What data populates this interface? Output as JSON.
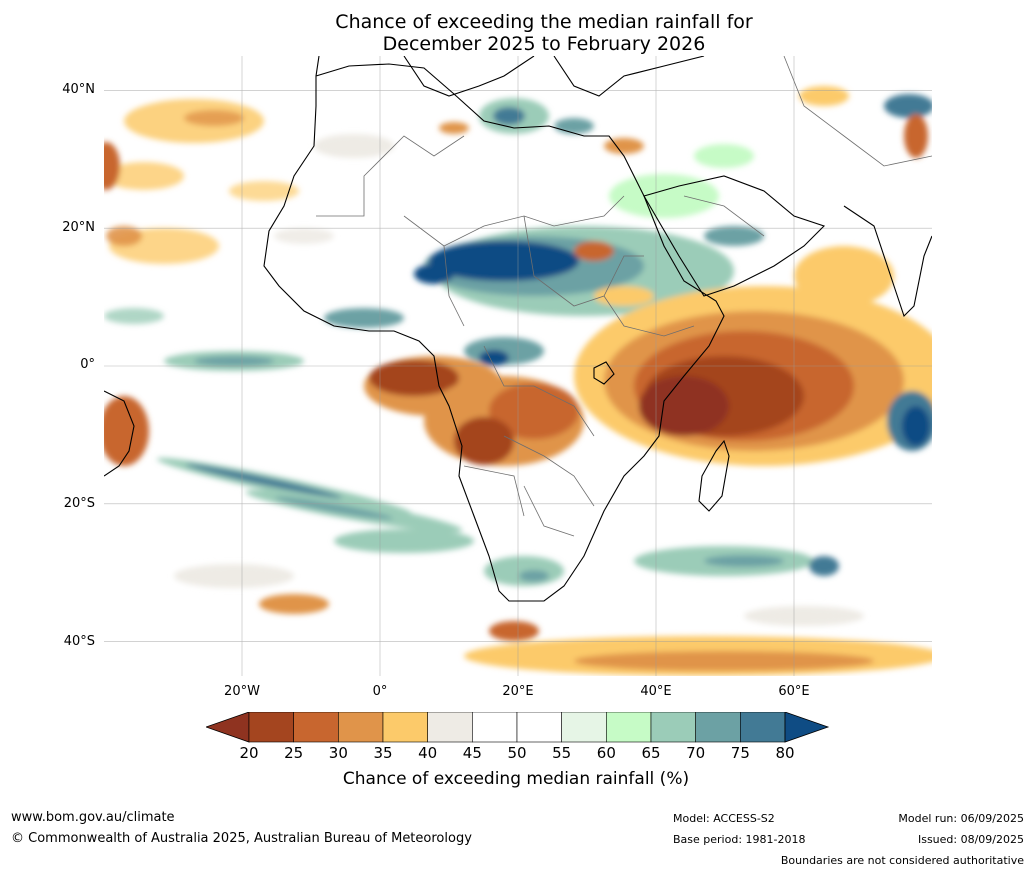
{
  "header": {
    "title_line1": "Chance of exceeding the median rainfall for",
    "title_line2": "December 2025 to February 2026"
  },
  "map": {
    "region": "Africa",
    "lat_labels": [
      "40°N",
      "20°N",
      "0°",
      "20°S",
      "40°S"
    ],
    "lon_labels": [
      "20°W",
      "0°",
      "20°E",
      "40°E",
      "60°E"
    ],
    "extent": {
      "lon_min": -40,
      "lon_max": 80,
      "lat_min": -45,
      "lat_max": 45
    },
    "gridlines": true,
    "ocean_color": "#ffffff"
  },
  "colorbar": {
    "ticks": [
      "20",
      "25",
      "30",
      "35",
      "40",
      "45",
      "50",
      "55",
      "60",
      "65",
      "70",
      "75",
      "80"
    ],
    "under_color": "#8f3320",
    "over_color": "#0f4c84",
    "colors": [
      "#a4451f",
      "#c8662f",
      "#e0944a",
      "#fcca6a",
      "#eeebe5",
      "#ffffff",
      "#ffffff",
      "#e6f5e6",
      "#c6fbc6",
      "#9bccb8",
      "#6ca1a4",
      "#427a95"
    ],
    "label": "Chance of exceeding median rainfall (%)"
  },
  "footer": {
    "website": "www.bom.gov.au/climate",
    "copyright": "© Commonwealth of Australia 2025, Australian Bureau of Meteorology",
    "model": "Model: ACCESS-S2",
    "base_period": "Base period: 1981-2018",
    "model_run": "Model run: 06/09/2025",
    "issued": "Issued: 08/09/2025",
    "disclaimer": "Boundaries are not considered authoritative"
  }
}
